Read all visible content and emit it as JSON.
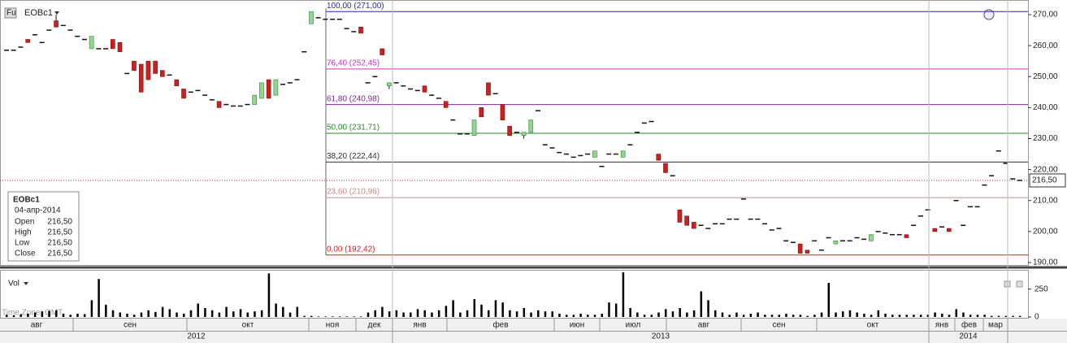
{
  "chart_data": {
    "type": "candlestick",
    "symbol": "EOBc1",
    "ylim": [
      190,
      270
    ],
    "yticks": [
      {
        "value": 190,
        "label": "190,00"
      },
      {
        "value": 200,
        "label": "200,00"
      },
      {
        "value": 210,
        "label": "210,00"
      },
      {
        "value": 220,
        "label": "220,00"
      },
      {
        "value": 230,
        "label": "230,00"
      },
      {
        "value": 240,
        "label": "240,00"
      },
      {
        "value": 250,
        "label": "250,00"
      },
      {
        "value": 260,
        "label": "260,00"
      },
      {
        "value": 270,
        "label": "270,00"
      }
    ],
    "last_price": {
      "value": 216.5,
      "label": "216,50"
    },
    "fib_levels": [
      {
        "label": "100,00 (271,00)",
        "value": 271,
        "color": "#2a2aa0"
      },
      {
        "label": "76,40 (252,45)",
        "value": 252.45,
        "color": "#d030c8"
      },
      {
        "label": "61,80 (240,98)",
        "value": 240.98,
        "color": "#7a2a90"
      },
      {
        "label": "50,00 (231,71)",
        "value": 231.71,
        "color": "#2a8a2a"
      },
      {
        "label": "38,20 (222,44)",
        "value": 222.44,
        "color": "#333333"
      },
      {
        "label": "23,60 (210,96)",
        "value": 210.96,
        "color": "#d08888"
      },
      {
        "label": "0,00 (192,42)",
        "value": 192.42,
        "color": "#d02020"
      }
    ],
    "up_color": "#8fd88f",
    "down_color": "#cc1f1f",
    "ohlc": [
      [
        258.5,
        258.5,
        258.5,
        258.5
      ],
      [
        258.5,
        258.5,
        258.5,
        258.5
      ],
      [
        259.5,
        259.5,
        259.5,
        259.5
      ],
      [
        262,
        262,
        261,
        261
      ],
      [
        263.5,
        263.5,
        263.5,
        263.5
      ],
      [
        261,
        261,
        261,
        261
      ],
      [
        265,
        265,
        265,
        265
      ],
      [
        268,
        270,
        266,
        266
      ],
      [
        266.5,
        266.5,
        266.5,
        266.5
      ],
      [
        265,
        265,
        265,
        265
      ],
      [
        263,
        263,
        263,
        263
      ],
      [
        262,
        262,
        262,
        262
      ],
      [
        259,
        263,
        259,
        263
      ],
      [
        259,
        259,
        259,
        259
      ],
      [
        259,
        259,
        259,
        259
      ],
      [
        262,
        262,
        259,
        259
      ],
      [
        261,
        261,
        258,
        258
      ],
      [
        251,
        251,
        251,
        251
      ],
      [
        255,
        255,
        252,
        252
      ],
      [
        254,
        254,
        245,
        245
      ],
      [
        255,
        255,
        249,
        249
      ],
      [
        255,
        255,
        251,
        251
      ],
      [
        252,
        252,
        250,
        250
      ],
      [
        250.5,
        250.5,
        250.5,
        250.5
      ],
      [
        249,
        249,
        247,
        247
      ],
      [
        246,
        246,
        243,
        243
      ],
      [
        245,
        245,
        245,
        245
      ],
      [
        245.5,
        245.5,
        245.5,
        245.5
      ],
      [
        244,
        244,
        244,
        244
      ],
      [
        242.5,
        242.5,
        242.5,
        242.5
      ],
      [
        242,
        242,
        240,
        240
      ],
      [
        241,
        241,
        241,
        241
      ],
      [
        240.5,
        240.5,
        240.5,
        240.5
      ],
      [
        240.5,
        240.5,
        240.5,
        240.5
      ],
      [
        241,
        241,
        241,
        241
      ],
      [
        241,
        244,
        241,
        244
      ],
      [
        243,
        248,
        243,
        248
      ],
      [
        249,
        249,
        243,
        243
      ],
      [
        244,
        249,
        244,
        249
      ],
      [
        247.5,
        247.5,
        247.5,
        247.5
      ],
      [
        248,
        248,
        248,
        248
      ],
      [
        249,
        249,
        249,
        249
      ],
      [
        258,
        258,
        258,
        258
      ],
      [
        267,
        271,
        267,
        271
      ],
      [
        269,
        269,
        269,
        269
      ],
      [
        268.5,
        268.5,
        268.5,
        268.5
      ],
      [
        268.5,
        268.5,
        268.5,
        268.5
      ],
      [
        268.5,
        268.5,
        268.5,
        268.5
      ],
      [
        265.5,
        265.5,
        265.5,
        265.5
      ],
      [
        264.5,
        264.5,
        264.5,
        264.5
      ],
      [
        266,
        266,
        264,
        264
      ],
      [
        248,
        248,
        248,
        248
      ],
      [
        250,
        250,
        250,
        250
      ],
      [
        259,
        259,
        257,
        257
      ],
      [
        247,
        248,
        246,
        248
      ],
      [
        248,
        248,
        248,
        248
      ],
      [
        247,
        247,
        247,
        247
      ],
      [
        246,
        246,
        246,
        246
      ],
      [
        245.5,
        245.5,
        245.5,
        245.5
      ],
      [
        247,
        247,
        245,
        245
      ],
      [
        244,
        244,
        244,
        244
      ],
      [
        243,
        243,
        243,
        243
      ],
      [
        242,
        242,
        240,
        240
      ],
      [
        236,
        236,
        236,
        236
      ],
      [
        231.5,
        231.5,
        231.5,
        231.5
      ],
      [
        231.5,
        231.5,
        231.5,
        231.5
      ],
      [
        231,
        236,
        231,
        236
      ],
      [
        240,
        240,
        237,
        237
      ],
      [
        248,
        248,
        244,
        244
      ],
      [
        244.5,
        244.5,
        244.5,
        244.5
      ],
      [
        241,
        241,
        236,
        236
      ],
      [
        234,
        234,
        231,
        231
      ],
      [
        232,
        232,
        232,
        232
      ],
      [
        231,
        232,
        230,
        232
      ],
      [
        232,
        236,
        232,
        236
      ],
      [
        239,
        239,
        239,
        239
      ],
      [
        228,
        228,
        228,
        228
      ],
      [
        227,
        227,
        227,
        227
      ],
      [
        225.5,
        225.5,
        225.5,
        225.5
      ],
      [
        225,
        225,
        225,
        225
      ],
      [
        224,
        224,
        224,
        224
      ],
      [
        224.5,
        224.5,
        224.5,
        224.5
      ],
      [
        225,
        225,
        225,
        225
      ],
      [
        224,
        226,
        224,
        226
      ],
      [
        221,
        221,
        221,
        221
      ],
      [
        225,
        225,
        225,
        225
      ],
      [
        225,
        225,
        225,
        225
      ],
      [
        224,
        226,
        224,
        226
      ],
      [
        228,
        228,
        228,
        228
      ],
      [
        232,
        232,
        232,
        232
      ],
      [
        235,
        235,
        235,
        235
      ],
      [
        235.5,
        235.5,
        235.5,
        235.5
      ],
      [
        225,
        225,
        223,
        223
      ],
      [
        222,
        222,
        219,
        219
      ],
      [
        218,
        218,
        218,
        218
      ],
      [
        207,
        207,
        203,
        203
      ],
      [
        205,
        205,
        202,
        202
      ],
      [
        203,
        203,
        201,
        201
      ],
      [
        202,
        202,
        202,
        202
      ],
      [
        201,
        201,
        201,
        201
      ],
      [
        202.5,
        202.5,
        202.5,
        202.5
      ],
      [
        202.5,
        202.5,
        202.5,
        202.5
      ],
      [
        204,
        204,
        204,
        204
      ],
      [
        204,
        204,
        204,
        204
      ],
      [
        210.5,
        210.5,
        210.5,
        210.5
      ],
      [
        204,
        204,
        204,
        204
      ],
      [
        204,
        204,
        204,
        204
      ],
      [
        202.5,
        202.5,
        202.5,
        202.5
      ],
      [
        200.5,
        200.5,
        200.5,
        200.5
      ],
      [
        201,
        201,
        201,
        201
      ],
      [
        197,
        197,
        197,
        197
      ],
      [
        196.5,
        196.5,
        196.5,
        196.5
      ],
      [
        196,
        196,
        193,
        193
      ],
      [
        194,
        194,
        193,
        193
      ],
      [
        197,
        197,
        197,
        197
      ],
      [
        194,
        194,
        194,
        194
      ],
      [
        198,
        198,
        198,
        198
      ],
      [
        196,
        197,
        196,
        197
      ],
      [
        197,
        197,
        197,
        197
      ],
      [
        197,
        197,
        197,
        197
      ],
      [
        198,
        198,
        198,
        198
      ],
      [
        197.5,
        197.5,
        197.5,
        197.5
      ],
      [
        197,
        199,
        197,
        199
      ],
      [
        200,
        200,
        200,
        200
      ],
      [
        199.5,
        199.5,
        199.5,
        199.5
      ],
      [
        199,
        199,
        199,
        199
      ],
      [
        199,
        199,
        199,
        199
      ],
      [
        199,
        199,
        198,
        198
      ],
      [
        202,
        202,
        202,
        202
      ],
      [
        205,
        205,
        205,
        205
      ],
      [
        207,
        207,
        207,
        207
      ],
      [
        201,
        201,
        200,
        200
      ],
      [
        201.5,
        201.5,
        201.5,
        201.5
      ],
      [
        201,
        201,
        200,
        200
      ],
      [
        210,
        210,
        210,
        210
      ],
      [
        202,
        202,
        202,
        202
      ],
      [
        208,
        208,
        208,
        208
      ],
      [
        208,
        208,
        208,
        208
      ],
      [
        215,
        215,
        215,
        215
      ],
      [
        218,
        218,
        218,
        218
      ],
      [
        226,
        226,
        226,
        226
      ],
      [
        222,
        222,
        222,
        222
      ],
      [
        217,
        217,
        217,
        217
      ],
      [
        216.5,
        216.5,
        216.5,
        216.5
      ]
    ],
    "volume": {
      "label": "Vol",
      "ylim": [
        0,
        400
      ],
      "yticks": [
        0,
        250
      ],
      "values": [
        20,
        15,
        25,
        30,
        40,
        50,
        55,
        60,
        30,
        20,
        30,
        25,
        150,
        340,
        110,
        60,
        40,
        30,
        20,
        40,
        60,
        45,
        90,
        70,
        40,
        30,
        60,
        120,
        80,
        60,
        40,
        90,
        50,
        70,
        40,
        50,
        60,
        390,
        120,
        90,
        40,
        90,
        10,
        10,
        5,
        5,
        5,
        5,
        5,
        5,
        5,
        40,
        60,
        90,
        50,
        60,
        40,
        40,
        70,
        60,
        40,
        60,
        100,
        150,
        40,
        60,
        160,
        110,
        60,
        150,
        130,
        60,
        50,
        80,
        40,
        60,
        50,
        50,
        30,
        20,
        20,
        30,
        20,
        20,
        30,
        130,
        120,
        400,
        80,
        40,
        20,
        20,
        40,
        70,
        50,
        80,
        40,
        60,
        230,
        150,
        60,
        40,
        20,
        40,
        20,
        30,
        40,
        20,
        20,
        20,
        30,
        20,
        20,
        10,
        20,
        40,
        305,
        40,
        50,
        60,
        40,
        30,
        20,
        60,
        30,
        20,
        20,
        20,
        20,
        20,
        20,
        40,
        30,
        20,
        70,
        40,
        20,
        20,
        20,
        10,
        10,
        10,
        10,
        10
      ]
    },
    "time_zone": "Time Zone: GMT",
    "months": [
      "авг",
      "сен",
      "окт",
      "ноя",
      "дек",
      "янв",
      "фев",
      "июн",
      "июл",
      "авг",
      "сен",
      "окт",
      "янв",
      "фев",
      "мар"
    ],
    "years": [
      "2012",
      "2013",
      "2014"
    ],
    "info_box": {
      "symbol": "EOBc1",
      "date": "04-апр-2014",
      "rows": [
        [
          "Open",
          "216,50"
        ],
        [
          "High",
          "216,50"
        ],
        [
          "Low",
          "216,50"
        ],
        [
          "Close",
          "216,50"
        ]
      ]
    }
  }
}
